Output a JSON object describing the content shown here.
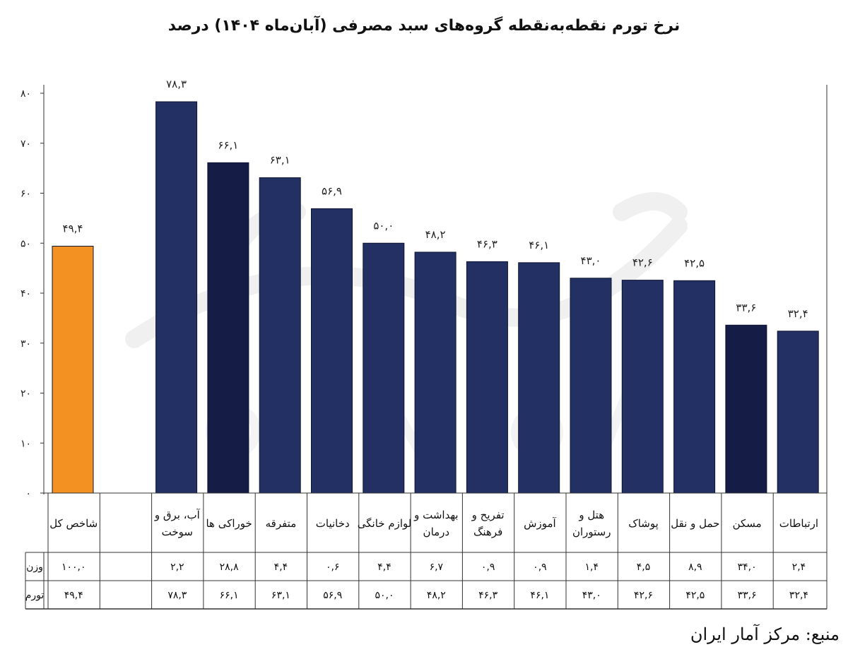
{
  "title": "نرخ تورم نقطه‌به‌نقطه گروه‌های سبد مصرفی (آبان‌ماه ۱۴۰۴) درصد",
  "source": "منبع: مرکز آمار ایران",
  "colors": {
    "highlight": "#F39222",
    "bar": "#233064",
    "bar_dark": "#151D47",
    "axis": "#333333"
  },
  "chart_data": {
    "type": "bar",
    "title": "نرخ تورم نقطه‌به‌نقطه گروه‌های سبد مصرفی (آبان‌ماه ۱۴۰۴) درصد",
    "ylim": [
      0,
      80
    ],
    "yticks": [
      "۰",
      "۱۰",
      "۲۰",
      "۳۰",
      "۴۰",
      "۵۰",
      "۶۰",
      "۷۰",
      "۸۰"
    ],
    "categories": [
      {
        "label": [
          "شاخص کل"
        ],
        "value": 49.4,
        "value_label": "۴۹,۴",
        "weight": "۱۰۰,۰",
        "inflation": "۴۹,۴",
        "color": "highlight"
      },
      {
        "label": [],
        "value": null,
        "value_label": "",
        "weight": "",
        "inflation": "",
        "color": "bar"
      },
      {
        "label": [
          "آب، برق و",
          "سوخت"
        ],
        "value": 78.3,
        "value_label": "۷۸,۳",
        "weight": "۲,۲",
        "inflation": "۷۸,۳",
        "color": "bar"
      },
      {
        "label": [
          "خوراکی ها"
        ],
        "value": 66.1,
        "value_label": "۶۶,۱",
        "weight": "۲۸,۸",
        "inflation": "۶۶,۱",
        "color": "bar_dark"
      },
      {
        "label": [
          "متفرقه"
        ],
        "value": 63.1,
        "value_label": "۶۳,۱",
        "weight": "۴,۴",
        "inflation": "۶۳,۱",
        "color": "bar"
      },
      {
        "label": [
          "دخانیات"
        ],
        "value": 56.9,
        "value_label": "۵۶,۹",
        "weight": "۰,۶",
        "inflation": "۵۶,۹",
        "color": "bar"
      },
      {
        "label": [
          "لوازم خانگی"
        ],
        "value": 50.0,
        "value_label": "۵۰,۰",
        "weight": "۴,۴",
        "inflation": "۵۰,۰",
        "color": "bar"
      },
      {
        "label": [
          "بهداشت و",
          "درمان"
        ],
        "value": 48.2,
        "value_label": "۴۸,۲",
        "weight": "۶,۷",
        "inflation": "۴۸,۲",
        "color": "bar"
      },
      {
        "label": [
          "تفریح و",
          "فرهنگ"
        ],
        "value": 46.3,
        "value_label": "۴۶,۳",
        "weight": "۰,۹",
        "inflation": "۴۶,۳",
        "color": "bar"
      },
      {
        "label": [
          "آموزش"
        ],
        "value": 46.1,
        "value_label": "۴۶,۱",
        "weight": "۰,۹",
        "inflation": "۴۶,۱",
        "color": "bar"
      },
      {
        "label": [
          "هتل و",
          "رستوران"
        ],
        "value": 43.0,
        "value_label": "۴۳,۰",
        "weight": "۱,۴",
        "inflation": "۴۳,۰",
        "color": "bar"
      },
      {
        "label": [
          "پوشاک"
        ],
        "value": 42.6,
        "value_label": "۴۲,۶",
        "weight": "۴,۵",
        "inflation": "۴۲,۶",
        "color": "bar"
      },
      {
        "label": [
          "حمل و نقل"
        ],
        "value": 42.5,
        "value_label": "۴۲,۵",
        "weight": "۸,۹",
        "inflation": "۴۲,۵",
        "color": "bar"
      },
      {
        "label": [
          "مسکن"
        ],
        "value": 33.6,
        "value_label": "۳۳,۶",
        "weight": "۳۴,۰",
        "inflation": "۳۳,۶",
        "color": "bar_dark"
      },
      {
        "label": [
          "ارتباطات"
        ],
        "value": 32.4,
        "value_label": "۳۲,۴",
        "weight": "۲,۴",
        "inflation": "۳۲,۴",
        "color": "bar"
      }
    ],
    "table_rows": [
      {
        "name": "وزن",
        "field": "weight"
      },
      {
        "name": "تورم",
        "field": "inflation"
      }
    ]
  }
}
